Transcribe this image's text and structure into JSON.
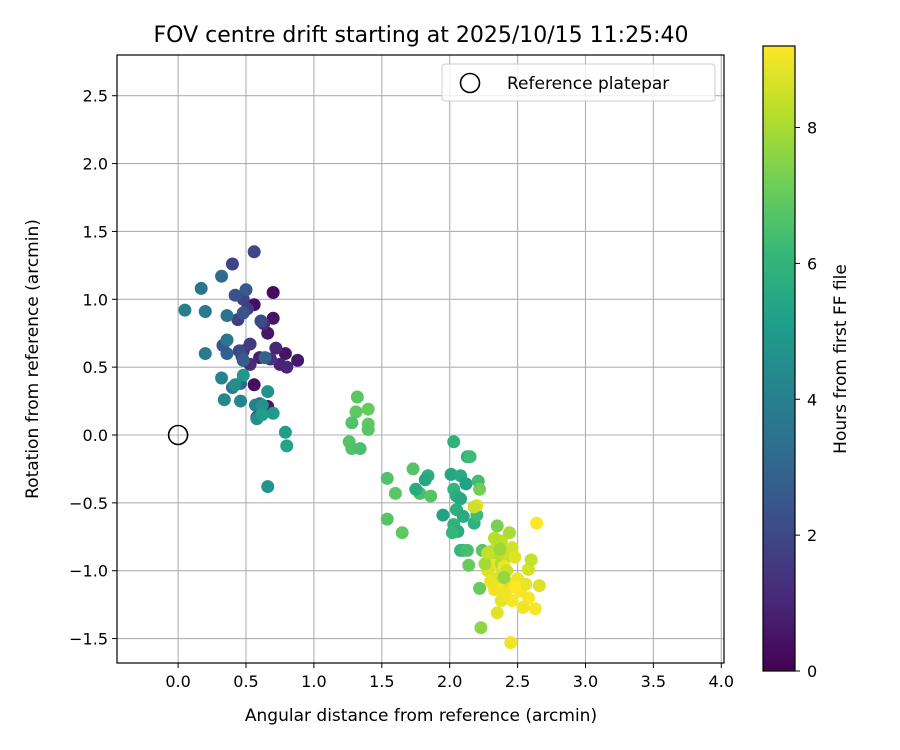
{
  "chart_data": {
    "type": "scatter",
    "title": "FOV centre drift starting at 2025/10/15 11:25:40",
    "xlabel": "Angular distance from reference (arcmin)",
    "ylabel": "Rotation from reference (arcmin)",
    "xlim": [
      -0.45,
      4.02
    ],
    "ylim": [
      -1.68,
      2.8
    ],
    "xticks": [
      0.0,
      0.5,
      1.0,
      1.5,
      2.0,
      2.5,
      3.0,
      3.5,
      4.0
    ],
    "xtick_labels": [
      "0.0",
      "0.5",
      "1.0",
      "1.5",
      "2.0",
      "2.5",
      "3.0",
      "3.5",
      "4.0"
    ],
    "yticks": [
      -1.5,
      -1.0,
      -0.5,
      0.0,
      0.5,
      1.0,
      1.5,
      2.0,
      2.5
    ],
    "ytick_labels": [
      "−1.5",
      "−1.0",
      "−0.5",
      "0.0",
      "0.5",
      "1.0",
      "1.5",
      "2.0",
      "2.5"
    ],
    "grid": true,
    "legend": {
      "position": "top-right",
      "label": "Reference platepar"
    },
    "reference_point": {
      "x": 0.0,
      "y": 0.0
    },
    "colorbar": {
      "label": "Hours from first FF file",
      "colormap": "viridis",
      "range": [
        0,
        9.2
      ],
      "ticks": [
        0,
        2,
        4,
        6,
        8
      ],
      "tick_labels": [
        "0",
        "2",
        "4",
        "6",
        "8"
      ]
    },
    "points": [
      {
        "x": 0.7,
        "y": 1.05,
        "t": 0.3
      },
      {
        "x": 0.56,
        "y": 0.96,
        "t": 0.4
      },
      {
        "x": 0.7,
        "y": 0.86,
        "t": 0.5
      },
      {
        "x": 0.66,
        "y": 0.75,
        "t": 0.6
      },
      {
        "x": 0.79,
        "y": 0.6,
        "t": 0.5
      },
      {
        "x": 0.88,
        "y": 0.55,
        "t": 0.6
      },
      {
        "x": 0.56,
        "y": 0.37,
        "t": 0.4
      },
      {
        "x": 0.66,
        "y": 0.21,
        "t": 0.6
      },
      {
        "x": 0.6,
        "y": 0.57,
        "t": 0.8
      },
      {
        "x": 0.75,
        "y": 0.52,
        "t": 0.9
      },
      {
        "x": 0.72,
        "y": 0.64,
        "t": 1.0
      },
      {
        "x": 0.8,
        "y": 0.5,
        "t": 1.0
      },
      {
        "x": 0.53,
        "y": 0.52,
        "t": 1.1
      },
      {
        "x": 0.48,
        "y": 0.62,
        "t": 1.2
      },
      {
        "x": 0.63,
        "y": 0.82,
        "t": 1.2
      },
      {
        "x": 0.68,
        "y": 0.56,
        "t": 1.3
      },
      {
        "x": 0.58,
        "y": 0.13,
        "t": 1.4
      },
      {
        "x": 0.4,
        "y": 1.26,
        "t": 1.9
      },
      {
        "x": 0.56,
        "y": 1.35,
        "t": 2.0
      },
      {
        "x": 0.48,
        "y": 1.0,
        "t": 1.9
      },
      {
        "x": 0.51,
        "y": 0.93,
        "t": 1.7
      },
      {
        "x": 0.44,
        "y": 0.85,
        "t": 1.8
      },
      {
        "x": 0.53,
        "y": 0.67,
        "t": 1.6
      },
      {
        "x": 0.45,
        "y": 0.62,
        "t": 2.0
      },
      {
        "x": 0.47,
        "y": 0.58,
        "t": 2.2
      },
      {
        "x": 0.61,
        "y": 0.84,
        "t": 2.1
      },
      {
        "x": 0.42,
        "y": 1.03,
        "t": 2.3
      },
      {
        "x": 0.5,
        "y": 1.07,
        "t": 2.5
      },
      {
        "x": 0.36,
        "y": 0.6,
        "t": 2.8
      },
      {
        "x": 0.33,
        "y": 0.66,
        "t": 2.6
      },
      {
        "x": 0.48,
        "y": 0.55,
        "t": 2.7
      },
      {
        "x": 0.6,
        "y": 0.23,
        "t": 2.8
      },
      {
        "x": 0.64,
        "y": 0.57,
        "t": 2.9
      },
      {
        "x": 0.46,
        "y": 0.38,
        "t": 3.0
      },
      {
        "x": 0.48,
        "y": 0.9,
        "t": 2.4
      },
      {
        "x": 0.32,
        "y": 1.17,
        "t": 3.2
      },
      {
        "x": 0.17,
        "y": 1.08,
        "t": 3.6
      },
      {
        "x": 0.2,
        "y": 0.91,
        "t": 3.7
      },
      {
        "x": 0.36,
        "y": 0.88,
        "t": 3.5
      },
      {
        "x": 0.05,
        "y": 0.92,
        "t": 4.0
      },
      {
        "x": 0.2,
        "y": 0.6,
        "t": 3.8
      },
      {
        "x": 0.36,
        "y": 0.7,
        "t": 3.6
      },
      {
        "x": 0.4,
        "y": 0.35,
        "t": 3.7
      },
      {
        "x": 0.32,
        "y": 0.42,
        "t": 4.2
      },
      {
        "x": 0.34,
        "y": 0.26,
        "t": 4.3
      },
      {
        "x": 0.46,
        "y": 0.25,
        "t": 4.2
      },
      {
        "x": 0.57,
        "y": 0.22,
        "t": 4.0
      },
      {
        "x": 0.58,
        "y": 0.12,
        "t": 4.5
      },
      {
        "x": 0.62,
        "y": 0.22,
        "t": 4.6
      },
      {
        "x": 0.66,
        "y": 0.32,
        "t": 4.8
      },
      {
        "x": 0.7,
        "y": 0.16,
        "t": 5.0
      },
      {
        "x": 0.79,
        "y": 0.02,
        "t": 5.2
      },
      {
        "x": 0.8,
        "y": -0.08,
        "t": 5.3
      },
      {
        "x": 0.66,
        "y": -0.38,
        "t": 4.8
      },
      {
        "x": 0.48,
        "y": 0.44,
        "t": 4.9
      },
      {
        "x": 0.42,
        "y": 0.37,
        "t": 4.5
      },
      {
        "x": 0.62,
        "y": 0.15,
        "t": 5.1
      },
      {
        "x": 1.32,
        "y": 0.28,
        "t": 6.8
      },
      {
        "x": 1.31,
        "y": 0.17,
        "t": 6.9
      },
      {
        "x": 1.4,
        "y": 0.19,
        "t": 7.0
      },
      {
        "x": 1.4,
        "y": 0.08,
        "t": 6.9
      },
      {
        "x": 1.28,
        "y": 0.09,
        "t": 6.6
      },
      {
        "x": 1.4,
        "y": 0.04,
        "t": 6.8
      },
      {
        "x": 1.26,
        "y": -0.05,
        "t": 6.7
      },
      {
        "x": 1.28,
        "y": -0.1,
        "t": 6.6
      },
      {
        "x": 1.34,
        "y": -0.1,
        "t": 6.5
      },
      {
        "x": 1.54,
        "y": -0.32,
        "t": 6.6
      },
      {
        "x": 1.6,
        "y": -0.43,
        "t": 6.8
      },
      {
        "x": 1.54,
        "y": -0.62,
        "t": 6.7
      },
      {
        "x": 1.65,
        "y": -0.72,
        "t": 6.9
      },
      {
        "x": 1.73,
        "y": -0.25,
        "t": 6.7
      },
      {
        "x": 1.78,
        "y": -0.43,
        "t": 6.5
      },
      {
        "x": 1.75,
        "y": -0.4,
        "t": 5.6
      },
      {
        "x": 1.84,
        "y": -0.3,
        "t": 5.7
      },
      {
        "x": 1.82,
        "y": -0.33,
        "t": 5.5
      },
      {
        "x": 1.86,
        "y": -0.45,
        "t": 6.7
      },
      {
        "x": 1.95,
        "y": -0.59,
        "t": 5.3
      },
      {
        "x": 2.01,
        "y": -0.29,
        "t": 5.4
      },
      {
        "x": 2.03,
        "y": -0.05,
        "t": 5.9
      },
      {
        "x": 2.08,
        "y": -0.3,
        "t": 5.6
      },
      {
        "x": 2.12,
        "y": -0.36,
        "t": 5.3
      },
      {
        "x": 2.13,
        "y": -0.16,
        "t": 5.8
      },
      {
        "x": 2.15,
        "y": -0.16,
        "t": 6.3
      },
      {
        "x": 2.03,
        "y": -0.4,
        "t": 6.0
      },
      {
        "x": 2.05,
        "y": -0.45,
        "t": 5.7
      },
      {
        "x": 2.08,
        "y": -0.47,
        "t": 5.5
      },
      {
        "x": 2.05,
        "y": -0.55,
        "t": 5.8
      },
      {
        "x": 2.1,
        "y": -0.6,
        "t": 5.6
      },
      {
        "x": 2.03,
        "y": -0.66,
        "t": 5.9
      },
      {
        "x": 2.06,
        "y": -0.71,
        "t": 5.7
      },
      {
        "x": 2.02,
        "y": -0.72,
        "t": 6.1
      },
      {
        "x": 2.08,
        "y": -0.85,
        "t": 6.0
      },
      {
        "x": 2.1,
        "y": -0.85,
        "t": 6.2
      },
      {
        "x": 2.18,
        "y": -0.65,
        "t": 5.9
      },
      {
        "x": 2.2,
        "y": -0.59,
        "t": 6.3
      },
      {
        "x": 2.21,
        "y": -0.34,
        "t": 6.4
      },
      {
        "x": 2.22,
        "y": -0.4,
        "t": 7.2
      },
      {
        "x": 2.2,
        "y": -0.52,
        "t": 8.8
      },
      {
        "x": 2.18,
        "y": -0.53,
        "t": 8.5
      },
      {
        "x": 2.13,
        "y": -0.85,
        "t": 6.5
      },
      {
        "x": 2.14,
        "y": -0.96,
        "t": 7.0
      },
      {
        "x": 2.24,
        "y": -0.85,
        "t": 6.8
      },
      {
        "x": 2.22,
        "y": -1.13,
        "t": 7.0
      },
      {
        "x": 2.23,
        "y": -1.42,
        "t": 7.6
      },
      {
        "x": 2.35,
        "y": -0.67,
        "t": 7.3
      },
      {
        "x": 2.3,
        "y": -0.86,
        "t": 8.0
      },
      {
        "x": 2.35,
        "y": -0.8,
        "t": 8.5
      },
      {
        "x": 2.33,
        "y": -0.9,
        "t": 8.2
      },
      {
        "x": 2.38,
        "y": -0.78,
        "t": 8.3
      },
      {
        "x": 2.32,
        "y": -0.96,
        "t": 8.9
      },
      {
        "x": 2.28,
        "y": -1.0,
        "t": 8.7
      },
      {
        "x": 2.38,
        "y": -0.95,
        "t": 8.1
      },
      {
        "x": 2.42,
        "y": -0.9,
        "t": 8.4
      },
      {
        "x": 2.44,
        "y": -0.72,
        "t": 8.0
      },
      {
        "x": 2.46,
        "y": -0.83,
        "t": 8.6
      },
      {
        "x": 2.48,
        "y": -0.9,
        "t": 8.8
      },
      {
        "x": 2.4,
        "y": -0.97,
        "t": 9.0
      },
      {
        "x": 2.36,
        "y": -1.05,
        "t": 8.7
      },
      {
        "x": 2.3,
        "y": -1.08,
        "t": 8.9
      },
      {
        "x": 2.33,
        "y": -1.14,
        "t": 9.0
      },
      {
        "x": 2.4,
        "y": -1.12,
        "t": 9.1
      },
      {
        "x": 2.44,
        "y": -1.1,
        "t": 8.8
      },
      {
        "x": 2.5,
        "y": -1.06,
        "t": 9.0
      },
      {
        "x": 2.52,
        "y": -1.15,
        "t": 9.2
      },
      {
        "x": 2.56,
        "y": -1.1,
        "t": 8.9
      },
      {
        "x": 2.58,
        "y": -1.2,
        "t": 9.1
      },
      {
        "x": 2.54,
        "y": -1.27,
        "t": 9.0
      },
      {
        "x": 2.46,
        "y": -1.22,
        "t": 9.1
      },
      {
        "x": 2.38,
        "y": -1.22,
        "t": 8.9
      },
      {
        "x": 2.35,
        "y": -1.31,
        "t": 8.8
      },
      {
        "x": 2.45,
        "y": -1.53,
        "t": 9.0
      },
      {
        "x": 2.63,
        "y": -1.28,
        "t": 9.1
      },
      {
        "x": 2.66,
        "y": -1.11,
        "t": 8.7
      },
      {
        "x": 2.58,
        "y": -0.99,
        "t": 8.6
      },
      {
        "x": 2.6,
        "y": -0.92,
        "t": 8.4
      },
      {
        "x": 2.64,
        "y": -0.65,
        "t": 9.2
      },
      {
        "x": 2.37,
        "y": -0.84,
        "t": 7.8
      },
      {
        "x": 2.26,
        "y": -0.95,
        "t": 7.9
      },
      {
        "x": 2.28,
        "y": -0.87,
        "t": 8.4
      },
      {
        "x": 2.42,
        "y": -1.0,
        "t": 8.5
      },
      {
        "x": 2.4,
        "y": -1.05,
        "t": 7.7
      },
      {
        "x": 2.33,
        "y": -0.76,
        "t": 8.2
      },
      {
        "x": 2.48,
        "y": -1.12,
        "t": 9.2
      },
      {
        "x": 2.41,
        "y": -1.17,
        "t": 9.0
      }
    ]
  }
}
